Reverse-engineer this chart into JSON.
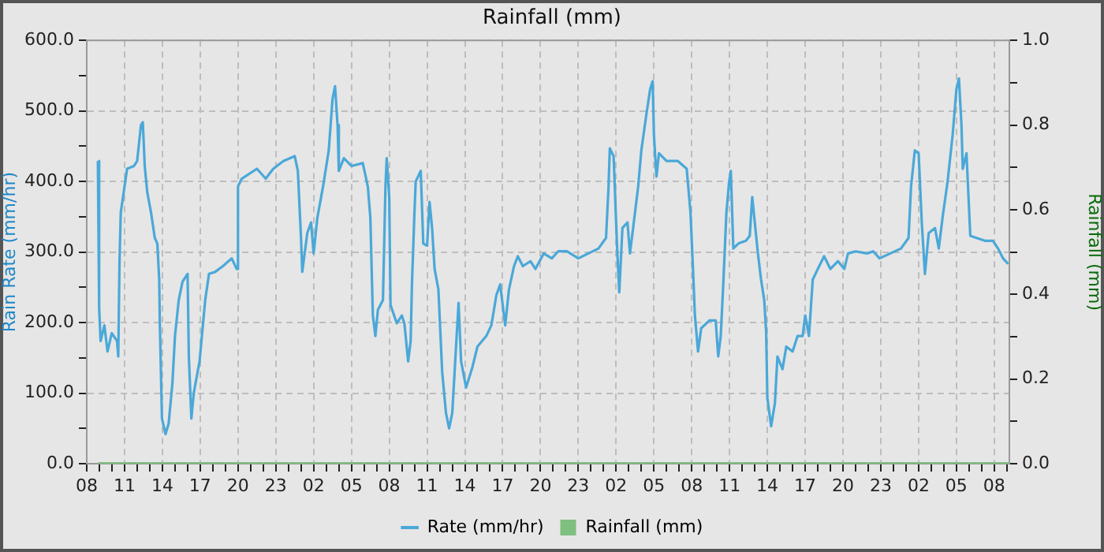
{
  "chart_data": {
    "type": "line",
    "title": "Rainfall (mm)",
    "ylabel": "Rain Rate (mm/hr)",
    "y2label": "Rainfall (mm)",
    "xlim": [
      "--01-01T08:00",
      "--01-04T09:12"
    ],
    "xticks": [
      {
        "value": "--01-01T08:00",
        "label": "08"
      },
      {
        "value": "--01-01T09:00",
        "label": null
      },
      {
        "value": "--01-01T10:00",
        "label": null
      },
      {
        "value": "--01-01T11:00",
        "label": "11"
      },
      {
        "value": "--01-01T12:00",
        "label": null
      },
      {
        "value": "--01-01T13:00",
        "label": null
      },
      {
        "value": "--01-01T14:00",
        "label": "14"
      },
      {
        "value": "--01-01T15:00",
        "label": null
      },
      {
        "value": "--01-01T16:00",
        "label": null
      },
      {
        "value": "--01-01T17:00",
        "label": "17"
      },
      {
        "value": "--01-01T18:00",
        "label": null
      },
      {
        "value": "--01-01T19:00",
        "label": null
      },
      {
        "value": "--01-01T20:00",
        "label": "20"
      },
      {
        "value": "--01-01T21:00",
        "label": null
      },
      {
        "value": "--01-01T22:00",
        "label": null
      },
      {
        "value": "--01-01T23:00",
        "label": "23"
      },
      {
        "value": "--01-02T00:00",
        "label": null
      },
      {
        "value": "--01-02T01:00",
        "label": null
      },
      {
        "value": "--01-02T02:00",
        "label": "02"
      },
      {
        "value": "--01-02T03:00",
        "label": null
      },
      {
        "value": "--01-02T04:00",
        "label": null
      },
      {
        "value": "--01-02T05:00",
        "label": "05"
      },
      {
        "value": "--01-02T06:00",
        "label": null
      },
      {
        "value": "--01-02T07:00",
        "label": null
      },
      {
        "value": "--01-02T08:00",
        "label": "08"
      },
      {
        "value": "--01-02T09:00",
        "label": null
      },
      {
        "value": "--01-02T10:00",
        "label": null
      },
      {
        "value": "--01-02T11:00",
        "label": "11"
      },
      {
        "value": "--01-02T12:00",
        "label": null
      },
      {
        "value": "--01-02T13:00",
        "label": null
      },
      {
        "value": "--01-02T14:00",
        "label": "14"
      },
      {
        "value": "--01-02T15:00",
        "label": null
      },
      {
        "value": "--01-02T16:00",
        "label": null
      },
      {
        "value": "--01-02T17:00",
        "label": "17"
      },
      {
        "value": "--01-02T18:00",
        "label": null
      },
      {
        "value": "--01-02T19:00",
        "label": null
      },
      {
        "value": "--01-02T20:00",
        "label": "20"
      },
      {
        "value": "--01-02T21:00",
        "label": null
      },
      {
        "value": "--01-02T22:00",
        "label": null
      },
      {
        "value": "--01-02T23:00",
        "label": "23"
      },
      {
        "value": "--01-03T00:00",
        "label": null
      },
      {
        "value": "--01-03T01:00",
        "label": null
      },
      {
        "value": "--01-03T02:00",
        "label": "02"
      },
      {
        "value": "--01-03T03:00",
        "label": null
      },
      {
        "value": "--01-03T04:00",
        "label": null
      },
      {
        "value": "--01-03T05:00",
        "label": "05"
      },
      {
        "value": "--01-03T06:00",
        "label": null
      },
      {
        "value": "--01-03T07:00",
        "label": null
      },
      {
        "value": "--01-03T08:00",
        "label": "08"
      },
      {
        "value": "--01-03T09:00",
        "label": null
      },
      {
        "value": "--01-03T10:00",
        "label": null
      },
      {
        "value": "--01-03T11:00",
        "label": "11"
      },
      {
        "value": "--01-03T12:00",
        "label": null
      },
      {
        "value": "--01-03T13:00",
        "label": null
      },
      {
        "value": "--01-03T14:00",
        "label": "14"
      },
      {
        "value": "--01-03T15:00",
        "label": null
      },
      {
        "value": "--01-03T16:00",
        "label": null
      },
      {
        "value": "--01-03T17:00",
        "label": "17"
      },
      {
        "value": "--01-03T18:00",
        "label": null
      },
      {
        "value": "--01-03T19:00",
        "label": null
      },
      {
        "value": "--01-03T20:00",
        "label": "20"
      },
      {
        "value": "--01-03T21:00",
        "label": null
      },
      {
        "value": "--01-03T22:00",
        "label": null
      },
      {
        "value": "--01-03T23:00",
        "label": "23"
      },
      {
        "value": "--01-04T00:00",
        "label": null
      },
      {
        "value": "--01-04T01:00",
        "label": null
      },
      {
        "value": "--01-04T02:00",
        "label": "02"
      },
      {
        "value": "--01-04T03:00",
        "label": null
      },
      {
        "value": "--01-04T04:00",
        "label": null
      },
      {
        "value": "--01-04T05:00",
        "label": "05"
      },
      {
        "value": "--01-04T06:00",
        "label": null
      },
      {
        "value": "--01-04T07:00",
        "label": null
      },
      {
        "value": "--01-04T08:00",
        "label": "08"
      },
      {
        "value": "--01-04T09:00",
        "label": null
      }
    ],
    "ylim": [
      0,
      600
    ],
    "yticks": [
      {
        "value": 0,
        "label": "0.0"
      },
      {
        "value": 50,
        "label": null
      },
      {
        "value": 100,
        "label": "100.0"
      },
      {
        "value": 150,
        "label": null
      },
      {
        "value": 200,
        "label": "200.0"
      },
      {
        "value": 250,
        "label": null
      },
      {
        "value": 300,
        "label": "300.0"
      },
      {
        "value": 350,
        "label": null
      },
      {
        "value": 400,
        "label": "400.0"
      },
      {
        "value": 450,
        "label": null
      },
      {
        "value": 500,
        "label": "500.0"
      },
      {
        "value": 550,
        "label": null
      },
      {
        "value": 600,
        "label": "600.0"
      }
    ],
    "y2lim": [
      0,
      1
    ],
    "y2ticks": [
      {
        "value": 0,
        "label": "0.0"
      },
      {
        "value": 0.1,
        "label": null
      },
      {
        "value": 0.2,
        "label": "0.2"
      },
      {
        "value": 0.3,
        "label": null
      },
      {
        "value": 0.4,
        "label": "0.4"
      },
      {
        "value": 0.5,
        "label": null
      },
      {
        "value": 0.6,
        "label": "0.6"
      },
      {
        "value": 0.7,
        "label": null
      },
      {
        "value": 0.8,
        "label": "0.8"
      },
      {
        "value": 0.9,
        "label": null
      },
      {
        "value": 1,
        "label": "1.0"
      }
    ],
    "grid": true,
    "legend": "bottom",
    "marker": "none",
    "line_style": "solid",
    "series": [
      {
        "name": "Rate (mm/hr)",
        "color": "#4aa8d8",
        "x": [
          "--01-01T08:53",
          "--01-01T08:58",
          "--01-01T09:00",
          "--01-01T09:06",
          "--01-01T09:24",
          "--01-01T09:39",
          "--01-01T09:59",
          "--01-01T10:24",
          "--01-01T10:30",
          "--01-01T10:36",
          "--01-01T10:42",
          "--01-01T11:00",
          "--01-01T11:12",
          "--01-01T11:45",
          "--01-01T12:00",
          "--01-01T12:18",
          "--01-01T12:27",
          "--01-01T12:36",
          "--01-01T12:48",
          "--01-01T13:06",
          "--01-01T13:24",
          "--01-01T13:36",
          "--01-01T13:45",
          "--01-01T13:48",
          "--01-01T13:58",
          "--01-01T14:15",
          "--01-01T14:30",
          "--01-01T14:48",
          "--01-01T15:00",
          "--01-01T15:18",
          "--01-01T15:36",
          "--01-01T16:00",
          "--01-01T16:06",
          "--01-01T16:18",
          "--01-01T16:30",
          "--01-01T16:57",
          "--01-01T17:24",
          "--01-01T17:42",
          "--01-01T18:12",
          "--01-01T18:48",
          "--01-01T19:30",
          "--01-01T19:54",
          "--01-01T20:00",
          "--01-01T20:18",
          "--01-01T21:30",
          "--01-01T22:12",
          "--01-01T22:48",
          "--01-01T23:36",
          "--01-02T00:30",
          "--01-02T00:45",
          "--01-02T01:00",
          "--01-02T01:06",
          "--01-02T01:30",
          "--01-02T01:48",
          "--01-02T02:00",
          "--01-02T02:18",
          "--01-02T02:45",
          "--01-02T03:12",
          "--01-02T03:30",
          "--01-02T03:42",
          "--01-02T03:54",
          "--01-02T04:00",
          "--01-02T04:24",
          "--01-02T05:00",
          "--01-02T05:54",
          "--01-02T06:18",
          "--01-02T06:30",
          "--01-02T06:42",
          "--01-02T06:54",
          "--01-02T07:06",
          "--01-02T07:30",
          "--01-02T07:42",
          "--01-02T07:48",
          "--01-02T08:00",
          "--01-02T08:06",
          "--01-02T08:36",
          "--01-02T09:00",
          "--01-02T09:12",
          "--01-02T09:30",
          "--01-02T09:42",
          "--01-02T09:48",
          "--01-02T10:00",
          "--01-02T10:06",
          "--01-02T10:30",
          "--01-02T10:42",
          "--01-02T11:00",
          "--01-02T11:12",
          "--01-02T11:24",
          "--01-02T11:36",
          "--01-02T11:54",
          "--01-02T12:12",
          "--01-02T12:30",
          "--01-02T12:45",
          "--01-02T13:00",
          "--01-02T13:18",
          "--01-02T13:30",
          "--01-02T13:42",
          "--01-02T14:06",
          "--01-02T14:36",
          "--01-02T15:00",
          "--01-02T15:42",
          "--01-02T16:06",
          "--01-02T16:30",
          "--01-02T16:48",
          "--01-02T17:12",
          "--01-02T17:30",
          "--01-02T17:54",
          "--01-02T18:12",
          "--01-02T18:36",
          "--01-02T19:12",
          "--01-02T19:36",
          "--01-02T20:15",
          "--01-02T20:54",
          "--01-02T21:24",
          "--01-02T22:06",
          "--01-02T23:00",
          "--01-02T23:48",
          "--01-03T00:36",
          "--01-03T01:12",
          "--01-03T01:24",
          "--01-03T01:30",
          "--01-03T01:48",
          "--01-03T02:00",
          "--01-03T02:06",
          "--01-03T02:15",
          "--01-03T02:30",
          "--01-03T02:54",
          "--01-03T03:06",
          "--01-03T03:30",
          "--01-03T03:45",
          "--01-03T04:00",
          "--01-03T04:24",
          "--01-03T04:42",
          "--01-03T04:54",
          "--01-03T05:00",
          "--01-03T05:12",
          "--01-03T05:24",
          "--01-03T06:00",
          "--01-03T06:54",
          "--01-03T07:36",
          "--01-03T07:54",
          "--01-03T08:06",
          "--01-03T08:15",
          "--01-03T08:30",
          "--01-03T08:45",
          "--01-03T09:24",
          "--01-03T09:54",
          "--01-03T10:06",
          "--01-03T10:18",
          "--01-03T10:30",
          "--01-03T10:45",
          "--01-03T10:58",
          "--01-03T11:06",
          "--01-03T11:18",
          "--01-03T11:42",
          "--01-03T12:18",
          "--01-03T12:36",
          "--01-03T12:48",
          "--01-03T13:00",
          "--01-03T13:15",
          "--01-03T13:30",
          "--01-03T13:45",
          "--01-03T13:54",
          "--01-03T14:00",
          "--01-03T14:18",
          "--01-03T14:36",
          "--01-03T14:48",
          "--01-03T15:12",
          "--01-03T15:30",
          "--01-03T16:00",
          "--01-03T16:24",
          "--01-03T16:48",
          "--01-03T17:00",
          "--01-03T17:18",
          "--01-03T17:36",
          "--01-03T18:00",
          "--01-03T18:30",
          "--01-03T19:00",
          "--01-03T19:36",
          "--01-03T20:06",
          "--01-03T20:24",
          "--01-03T21:00",
          "--01-03T21:54",
          "--01-03T22:24",
          "--01-03T22:54",
          "--01-03T23:45",
          "--01-04T00:36",
          "--01-04T01:12",
          "--01-04T01:24",
          "--01-04T01:42",
          "--01-04T02:00",
          "--01-04T02:15",
          "--01-04T02:30",
          "--01-04T02:48",
          "--01-04T03:18",
          "--01-04T03:36",
          "--01-04T03:54",
          "--01-04T04:18",
          "--01-04T04:42",
          "--01-04T05:00",
          "--01-04T05:12",
          "--01-04T05:24",
          "--01-04T05:30",
          "--01-04T05:48",
          "--01-04T05:54",
          "--01-04T06:06",
          "--01-04T06:36",
          "--01-04T07:15",
          "--01-04T07:54",
          "--01-04T08:18",
          "--01-04T08:42",
          "--01-04T09:06"
        ],
        "values": [
          429,
          429,
          221,
          174,
          196,
          159,
          185,
          174,
          152,
          287,
          356,
          393,
          418,
          422,
          429,
          480,
          484,
          422,
          385,
          356,
          320,
          312,
          261,
          199,
          64,
          42,
          57,
          115,
          181,
          232,
          258,
          269,
          152,
          64,
          101,
          145,
          232,
          269,
          272,
          280,
          291,
          276,
          393,
          404,
          418,
          404,
          418,
          429,
          436,
          415,
          320,
          272,
          327,
          342,
          298,
          349,
          393,
          444,
          517,
          535,
          480,
          415,
          433,
          422,
          426,
          393,
          349,
          210,
          181,
          218,
          232,
          393,
          433,
          378,
          225,
          199,
          210,
          199,
          145,
          174,
          254,
          356,
          400,
          415,
          312,
          309,
          371,
          334,
          276,
          247,
          130,
          72,
          50,
          72,
          166,
          228,
          145,
          108,
          137,
          166,
          181,
          196,
          239,
          254,
          196,
          247,
          280,
          294,
          280,
          287,
          276,
          298,
          291,
          301,
          301,
          291,
          298,
          305,
          320,
          393,
          447,
          436,
          342,
          298,
          243,
          334,
          342,
          298,
          356,
          393,
          444,
          495,
          531,
          542,
          466,
          407,
          440,
          429,
          429,
          418,
          356,
          276,
          210,
          159,
          192,
          203,
          203,
          152,
          181,
          254,
          356,
          400,
          415,
          305,
          312,
          316,
          323,
          378,
          342,
          298,
          261,
          232,
          188,
          93,
          53,
          86,
          152,
          134,
          166,
          159,
          181,
          181,
          210,
          181,
          261,
          276,
          294,
          276,
          287,
          276,
          298,
          301,
          298,
          301,
          291,
          298,
          305,
          320,
          393,
          444,
          440,
          342,
          269,
          327,
          334,
          305,
          349,
          400,
          466,
          531,
          546,
          480,
          418,
          440,
          400,
          323,
          320,
          316,
          316,
          305,
          291,
          283
        ]
      },
      {
        "name": "Rainfall (mm)",
        "color": "#7fbf7f",
        "axis": "y2",
        "x": [
          "--01-01T08:54",
          "--01-04T09:12"
        ],
        "values": [
          0,
          0
        ]
      }
    ]
  }
}
